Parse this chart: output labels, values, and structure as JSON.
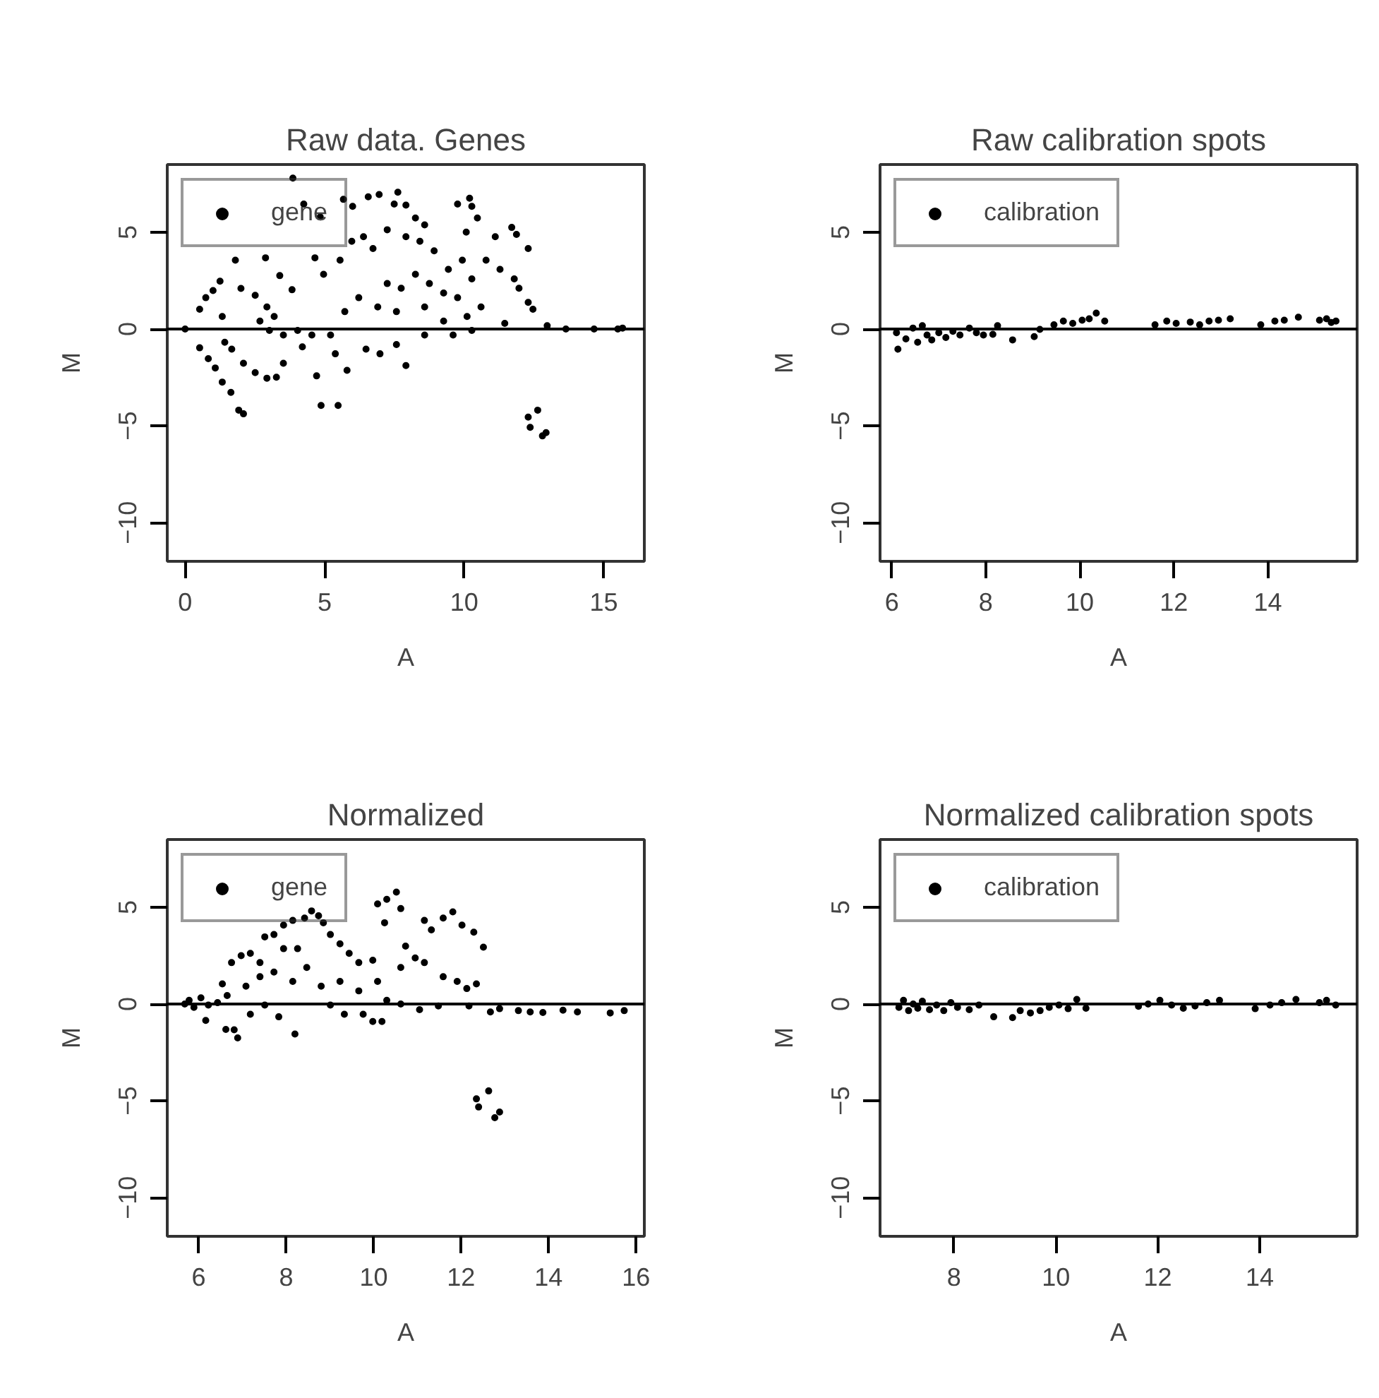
{
  "chart_data": [
    {
      "type": "scatter",
      "title": "Raw data. Genes",
      "xlabel": "A",
      "ylabel": "M",
      "xlim": [
        -0.64,
        16.45
      ],
      "ylim": [
        -12,
        8.5
      ],
      "xticks": [
        0,
        5,
        10,
        15
      ],
      "yticks": [
        -10,
        -5,
        0,
        5
      ],
      "grid": false,
      "legend": "top left",
      "marker": "circle",
      "ref_lines": [
        {
          "axis": "y",
          "value": 0,
          "color": "#000000"
        }
      ],
      "series": [
        {
          "name": "gene",
          "color": "#000000",
          "x": [
            3.86,
            4.25,
            4.84,
            5.67,
            6.0,
            6.56,
            6.95,
            7.62,
            7.49,
            7.91,
            8.25,
            8.58,
            9.76,
            10.19,
            10.27,
            10.47,
            10.07,
            11.7,
            11.87,
            11.11,
            12.29,
            1.8,
            2.88,
            4.65,
            3.39,
            3.83,
            1.25,
            1.0,
            0.74,
            0.52,
            0,
            2.0,
            2.51,
            2.93,
            1.33,
            4.96,
            5.55,
            5.97,
            6.39,
            6.73,
            7.24,
            7.91,
            8.41,
            8.92,
            9.43,
            9.93,
            10.27,
            10.78,
            11.28,
            11.79,
            11.96,
            12.29,
            12.46,
            12.97,
            13.64,
            14.65,
            15.67,
            15.5,
            11.45,
            10.27,
            9.6,
            8.58,
            7.57,
            6.98,
            7.91,
            6.48,
            5.8,
            5.38,
            4.71,
            4.87,
            5.48,
            4.2,
            3.52,
            3.27,
            2.93,
            2.51,
            2.09,
            1.67,
            1.42,
            0.52,
            0.83,
            1.08,
            1.33,
            1.64,
            1.92,
            2.09,
            12.29,
            12.63,
            12.36,
            12.8,
            12.93,
            3.02,
            3.52,
            4.03,
            4.54,
            5.21,
            2.68,
            3.19,
            7.24,
            7.74,
            8.25,
            8.75,
            9.26,
            9.76,
            10.1,
            10.6,
            6.9,
            6.22,
            5.72,
            7.57,
            8.58,
            9.26
          ],
          "values": [
            7.8,
            6.46,
            5.79,
            6.7,
            6.34,
            6.83,
            6.95,
            7.07,
            6.46,
            6.4,
            5.74,
            5.38,
            6.46,
            6.76,
            6.34,
            5.74,
            5.01,
            5.25,
            4.89,
            4.77,
            4.16,
            3.56,
            3.68,
            3.68,
            2.76,
            2.03,
            2.47,
            1.99,
            1.62,
            1.02,
            0,
            2.1,
            1.74,
            1.14,
            0.65,
            2.83,
            3.56,
            4.53,
            4.77,
            4.16,
            5.13,
            4.77,
            4.53,
            4.04,
            3.08,
            3.56,
            2.59,
            3.56,
            3.08,
            2.59,
            2.11,
            1.38,
            1.02,
            0.17,
            0,
            0,
            0.05,
            0,
            0.29,
            -0.07,
            -0.31,
            -0.31,
            -0.8,
            -1.28,
            -1.89,
            -1.04,
            -2.13,
            -1.28,
            -2.42,
            -3.95,
            -3.95,
            -0.92,
            -1.77,
            -2.49,
            -2.54,
            -2.25,
            -1.77,
            -1.04,
            -0.68,
            -0.97,
            -1.53,
            -2.01,
            -2.74,
            -3.27,
            -4.19,
            -4.38,
            -4.55,
            -4.19,
            -5.08,
            -5.52,
            -5.35,
            -0.07,
            -0.31,
            -0.07,
            -0.31,
            -0.31,
            0.41,
            0.65,
            2.35,
            2.11,
            2.83,
            2.35,
            1.86,
            1.62,
            0.65,
            1.14,
            1.14,
            1.62,
            0.9,
            0.9,
            1.14,
            0.41
          ]
        }
      ]
    },
    {
      "type": "scatter",
      "title": "Raw calibration spots",
      "xlabel": "A",
      "ylabel": "M",
      "xlim": [
        5.75,
        15.9
      ],
      "ylim": [
        -12,
        8.5
      ],
      "xticks": [
        6,
        8,
        10,
        12,
        14
      ],
      "yticks": [
        -10,
        -5,
        0,
        5
      ],
      "grid": false,
      "legend": "top left",
      "marker": "circle",
      "ref_lines": [
        {
          "axis": "y",
          "value": 0,
          "color": "#000000"
        }
      ],
      "series": [
        {
          "name": "calibration",
          "color": "#000000",
          "x": [
            6.13,
            6.1,
            6.3,
            6.45,
            6.55,
            6.65,
            6.75,
            6.85,
            7.0,
            7.15,
            7.3,
            7.45,
            7.65,
            7.8,
            7.95,
            8.15,
            8.25,
            8.57,
            9.03,
            9.15,
            9.45,
            9.65,
            9.85,
            10.05,
            10.2,
            10.35,
            10.53,
            11.6,
            11.85,
            12.05,
            12.35,
            12.55,
            12.75,
            12.95,
            13.2,
            13.85,
            14.15,
            14.35,
            14.65,
            15.1,
            15.25,
            15.45,
            15.35
          ],
          "values": [
            -1.04,
            -0.19,
            -0.51,
            0.05,
            -0.68,
            0.17,
            -0.31,
            -0.56,
            -0.19,
            -0.44,
            -0.12,
            -0.31,
            0.05,
            -0.19,
            -0.31,
            -0.27,
            0.17,
            -0.56,
            -0.39,
            -0.02,
            0.22,
            0.41,
            0.29,
            0.46,
            0.53,
            0.82,
            0.41,
            0.22,
            0.41,
            0.29,
            0.36,
            0.22,
            0.41,
            0.46,
            0.53,
            0.22,
            0.41,
            0.46,
            0.61,
            0.46,
            0.53,
            0.41,
            0.34
          ]
        }
      ]
    },
    {
      "type": "scatter",
      "title": "Normalized",
      "xlabel": "A",
      "ylabel": "M",
      "xlim": [
        5.28,
        16.19
      ],
      "ylim": [
        -12,
        8.5
      ],
      "xticks": [
        6,
        8,
        10,
        12,
        14,
        16
      ],
      "yticks": [
        -10,
        -5,
        0,
        5
      ],
      "grid": false,
      "legend": "top left",
      "marker": "circle",
      "ref_lines": [
        {
          "axis": "y",
          "value": 0,
          "color": "#000000"
        }
      ],
      "series": [
        {
          "name": "gene",
          "color": "#000000",
          "x": [
            5.68,
            5.78,
            5.89,
            6.05,
            6.22,
            6.43,
            6.16,
            6.62,
            6.81,
            6.89,
            6.54,
            6.75,
            6.97,
            7.18,
            7.51,
            7.72,
            7.94,
            8.15,
            8.42,
            8.58,
            8.74,
            8.85,
            9.01,
            9.23,
            9.44,
            9.66,
            9.98,
            10.09,
            10.3,
            10.52,
            10.62,
            10.25,
            10.73,
            11.16,
            11.32,
            11.59,
            11.81,
            12.02,
            12.29,
            12.51,
            12.35,
            12.13,
            11.91,
            11.59,
            11.16,
            10.95,
            10.62,
            10.3,
            10.62,
            11.05,
            11.48,
            12.18,
            12.67,
            12.88,
            13.31,
            13.58,
            13.87,
            14.33,
            14.66,
            15.41,
            15.73,
            9.98,
            10.19,
            9.76,
            9.33,
            9.01,
            8.2,
            7.83,
            7.18,
            7.51,
            6.65,
            7.08,
            7.4,
            7.72,
            8.15,
            8.47,
            8.8,
            9.23,
            9.66,
            10.09,
            8.26,
            7.94,
            7.4,
            12.35,
            12.63,
            12.4,
            12.77,
            12.88
          ],
          "values": [
            0,
            0.19,
            -0.17,
            0.32,
            -0.05,
            0.07,
            -0.85,
            -1.31,
            -1.33,
            -1.75,
            1.04,
            2.14,
            2.5,
            2.62,
            3.47,
            3.59,
            4.08,
            4.32,
            4.44,
            4.81,
            4.56,
            4.2,
            3.59,
            3.11,
            2.62,
            2.14,
            2.26,
            5.17,
            5.41,
            5.78,
            4.93,
            4.2,
            2.99,
            4.32,
            3.83,
            4.44,
            4.76,
            4.08,
            3.71,
            2.94,
            1.04,
            0.8,
            1.17,
            1.41,
            2.14,
            2.38,
            1.89,
            0.19,
            0,
            -0.29,
            -0.1,
            -0.1,
            -0.41,
            -0.24,
            -0.34,
            -0.41,
            -0.44,
            -0.32,
            -0.41,
            -0.46,
            -0.34,
            -0.9,
            -0.9,
            -0.53,
            -0.53,
            -0.05,
            -1.55,
            -0.66,
            -0.53,
            -0.05,
            0.44,
            0.92,
            1.41,
            1.65,
            1.17,
            1.89,
            0.92,
            1.17,
            0.68,
            1.17,
            2.86,
            2.86,
            2.14,
            -4.9,
            -4.49,
            -5.32,
            -5.87,
            -5.58
          ]
        }
      ]
    },
    {
      "type": "scatter",
      "title": "Normalized calibration spots",
      "xlabel": "A",
      "ylabel": "M",
      "xlim": [
        6.55,
        15.91
      ],
      "ylim": [
        -12,
        8.5
      ],
      "xticks": [
        8,
        10,
        12,
        14
      ],
      "yticks": [
        -10,
        -5,
        0,
        5
      ],
      "grid": false,
      "legend": "top left",
      "marker": "circle",
      "ref_lines": [
        {
          "axis": "y",
          "value": 0,
          "color": "#000000"
        }
      ],
      "series": [
        {
          "name": "calibration",
          "color": "#000000",
          "x": [
            6.92,
            7.01,
            7.11,
            7.2,
            7.29,
            7.38,
            7.52,
            7.66,
            7.8,
            7.94,
            8.07,
            8.3,
            8.49,
            8.78,
            9.15,
            9.3,
            9.5,
            9.69,
            9.87,
            10.06,
            10.24,
            10.41,
            10.59,
            11.62,
            11.81,
            12.04,
            12.27,
            12.5,
            12.73,
            12.96,
            13.21,
            13.91,
            14.2,
            14.43,
            14.71,
            15.17,
            15.31,
            15.49
          ],
          "values": [
            -0.17,
            0.19,
            -0.34,
            0,
            -0.22,
            0.15,
            -0.29,
            -0.05,
            -0.34,
            0.07,
            -0.17,
            -0.29,
            -0.05,
            -0.66,
            -0.7,
            -0.34,
            -0.46,
            -0.34,
            -0.17,
            -0.05,
            -0.24,
            0.24,
            -0.22,
            -0.12,
            0,
            0.19,
            -0.05,
            -0.22,
            -0.1,
            0.07,
            0.19,
            -0.24,
            -0.05,
            0.07,
            0.24,
            0.07,
            0.19,
            -0.05
          ]
        }
      ]
    }
  ]
}
